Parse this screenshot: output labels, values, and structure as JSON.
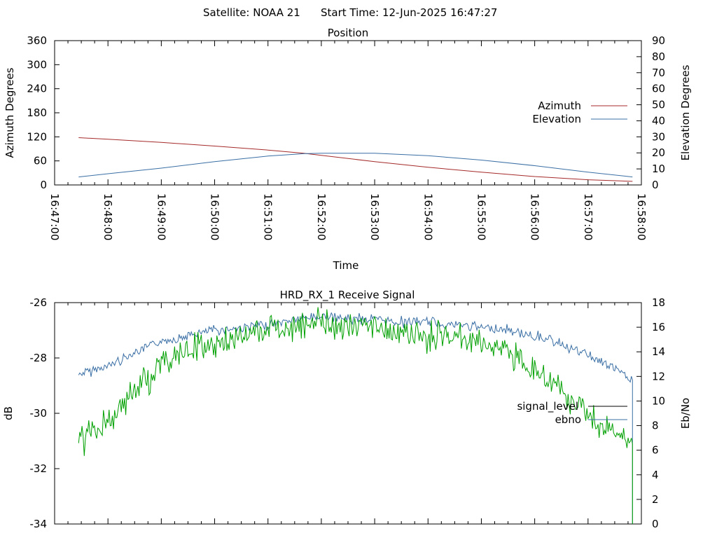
{
  "header": {
    "satellite_label": "Satellite: NOAA 21",
    "start_time_label": "Start Time: 12-Jun-2025 16:47:27"
  },
  "colors": {
    "azimuth": "#a52a2a",
    "elevation": "#3a6fa5",
    "signal_level": "#000000",
    "ebno_plot": "#00a000",
    "signal_plot": "#3a6fa5"
  },
  "chart_data": [
    {
      "type": "line",
      "title": "Position",
      "xlabel": "Time",
      "ylabel": "Azimuth Degrees",
      "y2label": "Elevation Degrees",
      "xlim": [
        "16:47:00",
        "16:58:00"
      ],
      "x_ticks": [
        "16:47:00",
        "16:48:00",
        "16:49:00",
        "16:50:00",
        "16:51:00",
        "16:52:00",
        "16:53:00",
        "16:54:00",
        "16:55:00",
        "16:56:00",
        "16:57:00",
        "16:58:00"
      ],
      "ylim": [
        0,
        360
      ],
      "y_ticks": [
        "0",
        "60",
        "120",
        "180",
        "240",
        "300",
        "360"
      ],
      "y2lim": [
        0,
        90
      ],
      "y2_ticks": [
        "0",
        "10",
        "20",
        "30",
        "40",
        "50",
        "60",
        "70",
        "80",
        "90"
      ],
      "legend_position": "right",
      "grid": false,
      "series": [
        {
          "name": "Azimuth",
          "axis": "y",
          "x": [
            "16:47:27",
            "16:48:00",
            "16:49:00",
            "16:50:00",
            "16:51:00",
            "16:51:40",
            "16:52:00",
            "16:53:00",
            "16:54:00",
            "16:55:00",
            "16:56:00",
            "16:57:00",
            "16:57:50"
          ],
          "values": [
            118,
            114,
            106,
            97,
            87,
            79,
            74,
            58,
            44,
            32,
            21,
            13,
            9
          ]
        },
        {
          "name": "Elevation",
          "axis": "y2",
          "x": [
            "16:47:27",
            "16:48:00",
            "16:49:00",
            "16:50:00",
            "16:51:00",
            "16:51:40",
            "16:52:00",
            "16:53:00",
            "16:54:00",
            "16:55:00",
            "16:56:00",
            "16:57:00",
            "16:57:50"
          ],
          "values": [
            5,
            7,
            10.5,
            14.5,
            18,
            19.5,
            19.8,
            19.8,
            18.2,
            15.5,
            12,
            8,
            5
          ]
        }
      ]
    },
    {
      "type": "line",
      "title": "HRD_RX_1 Receive Signal",
      "xlabel": "",
      "ylabel": "dB",
      "y2label": "Eb/No",
      "xlim": [
        "16:47:00",
        "16:58:00"
      ],
      "ylim": [
        -34,
        -26
      ],
      "y_ticks": [
        "-26",
        "-28",
        "-30",
        "-32",
        "-34"
      ],
      "y2lim": [
        0,
        18
      ],
      "y2_ticks": [
        "0",
        "2",
        "4",
        "6",
        "8",
        "10",
        "12",
        "14",
        "16",
        "18"
      ],
      "legend_position": "right",
      "grid": false,
      "series": [
        {
          "name": "signal_level",
          "axis": "y",
          "x": [
            "16:47:27",
            "16:48:00",
            "16:48:30",
            "16:49:00",
            "16:49:30",
            "16:50:00",
            "16:50:30",
            "16:51:00",
            "16:51:30",
            "16:52:00",
            "16:52:30",
            "16:53:00",
            "16:53:30",
            "16:54:00",
            "16:54:30",
            "16:55:00",
            "16:55:30",
            "16:56:00",
            "16:56:30",
            "16:57:00",
            "16:57:30",
            "16:57:50"
          ],
          "values": [
            -28.6,
            -28.3,
            -27.8,
            -27.4,
            -27.2,
            -27.0,
            -26.9,
            -26.8,
            -26.6,
            -26.5,
            -26.6,
            -26.6,
            -26.7,
            -26.7,
            -26.8,
            -26.9,
            -27.0,
            -27.2,
            -27.5,
            -27.9,
            -28.4,
            -28.8
          ]
        },
        {
          "name": "ebno",
          "axis": "y2",
          "x": [
            "16:47:27",
            "16:48:00",
            "16:48:30",
            "16:49:00",
            "16:49:30",
            "16:50:00",
            "16:50:30",
            "16:51:00",
            "16:51:30",
            "16:52:00",
            "16:52:30",
            "16:53:00",
            "16:53:30",
            "16:54:00",
            "16:54:30",
            "16:55:00",
            "16:55:30",
            "16:56:00",
            "16:56:30",
            "16:57:00",
            "16:57:30",
            "16:57:50"
          ],
          "values": [
            6.5,
            8.5,
            11,
            12.8,
            14,
            14.8,
            15.2,
            15.8,
            16.2,
            16.3,
            16.1,
            15.9,
            15.5,
            15.2,
            15.2,
            14.8,
            14,
            12.2,
            10.5,
            9,
            7.5,
            6.5
          ]
        }
      ]
    }
  ]
}
